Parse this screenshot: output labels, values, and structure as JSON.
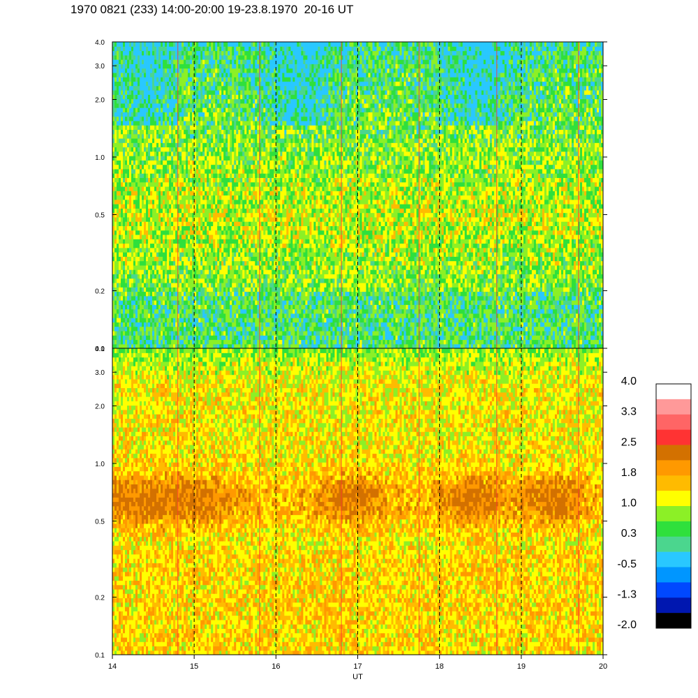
{
  "title": "1970 0821 (233) 14:00-20:00 19-23.8.1970  20-16 UT",
  "colors": {
    "scale": [
      "#000000",
      "#0017b0",
      "#0048ff",
      "#0096ff",
      "#29c8ff",
      "#4bd68e",
      "#2fe03c",
      "#8cf026",
      "#ffff00",
      "#ffbb00",
      "#ff9900",
      "#d37100",
      "#ff3333",
      "#ff6565",
      "#ff9999",
      "#ffffff"
    ]
  },
  "chart_data": {
    "type": "heatmap",
    "xlabel": "UT",
    "x_ticks": [
      "14",
      "15",
      "16",
      "17",
      "18",
      "19",
      "20"
    ],
    "xlim": [
      14,
      20
    ],
    "y_scale": "log",
    "ylim": [
      0.1,
      4.0
    ],
    "y_ticks": [
      "0.1",
      "0.2",
      "0.5",
      "1.0",
      "2.0",
      "3.0",
      "4.0"
    ],
    "dashed_verticals_ut": [
      15,
      16,
      17,
      18,
      19
    ],
    "panels": [
      {
        "name": "upper",
        "dominant_levels": [
          0.3,
          1.0
        ],
        "note_levels": "green-yellow, blue-cyan patches near 2–3"
      },
      {
        "name": "lower",
        "dominant_levels": [
          1.0,
          2.5
        ],
        "note_levels": "orange, brown band near 0.5–0.8"
      }
    ],
    "colorbar": {
      "labels": [
        "4.0",
        "3.3",
        "2.5",
        "1.8",
        "1.0",
        "0.3",
        "-0.5",
        "-1.3",
        "-2.0"
      ],
      "levels": 16
    }
  }
}
